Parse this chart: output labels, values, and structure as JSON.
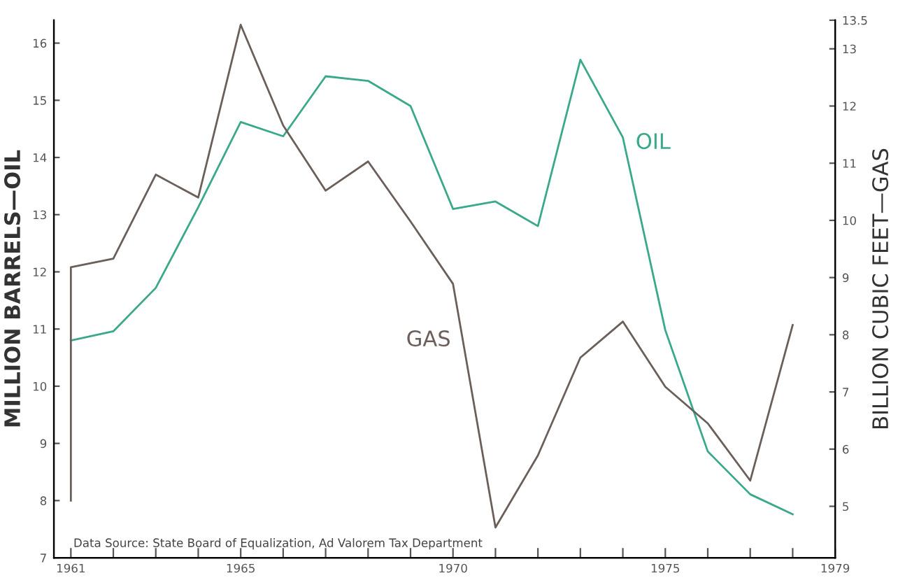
{
  "chart_data": {
    "type": "line",
    "ylabel": "MILLION BARRELS—OIL",
    "y2label": "BILLION CUBIC FEET—GAS",
    "annotations": [
      "Data Source: State Board of Equalization, Ad Valorem Tax Department"
    ],
    "series": [
      {
        "name": "OIL",
        "color": "#3aa88a",
        "x": [
          1961,
          1962,
          1963,
          1964,
          1965,
          1966,
          1967,
          1968,
          1969,
          1970,
          1971,
          1972,
          1973,
          1974,
          1975,
          1976,
          1977,
          1978
        ],
        "values": [
          10.8,
          10.96,
          11.72,
          13.13,
          14.62,
          14.37,
          15.42,
          15.34,
          14.9,
          13.1,
          13.23,
          12.8,
          15.71,
          14.35,
          10.98,
          8.86,
          8.11,
          7.76
        ]
      },
      {
        "name": "GAS",
        "color": "#6b5f5a",
        "axis": "y2",
        "x": [
          1961,
          1961,
          1962,
          1963,
          1964,
          1965,
          1966,
          1967,
          1968,
          1969,
          1970,
          1971,
          1972,
          1973,
          1974,
          1975,
          1976,
          1977,
          1978
        ],
        "values": [
          5.1,
          9.18,
          9.33,
          10.8,
          10.4,
          13.42,
          11.66,
          10.52,
          11.03,
          9.98,
          8.89,
          4.63,
          5.89,
          7.6,
          8.23,
          7.09,
          6.45,
          5.45,
          8.17
        ]
      }
    ],
    "xlim": [
      1960.6,
      1979
    ],
    "xticks": [
      1961,
      {
        "value": 1962,
        "label": null
      },
      {
        "value": 1963,
        "label": null
      },
      {
        "value": 1964,
        "label": null
      },
      1965,
      {
        "value": 1966,
        "label": null
      },
      {
        "value": 1967,
        "label": null
      },
      {
        "value": 1968,
        "label": null
      },
      {
        "value": 1969,
        "label": null
      },
      1970,
      {
        "value": 1971,
        "label": null
      },
      {
        "value": 1972,
        "label": null
      },
      {
        "value": 1973,
        "label": null
      },
      {
        "value": 1974,
        "label": null
      },
      1975,
      {
        "value": 1976,
        "label": null
      },
      {
        "value": 1977,
        "label": null
      },
      {
        "value": 1978,
        "label": null
      },
      1979
    ],
    "ylim": [
      7,
      16.4
    ],
    "yticks": [
      7,
      8,
      9,
      10,
      11,
      12,
      13,
      14,
      15,
      16
    ],
    "y2lim": [
      4.1,
      13.5
    ],
    "y2ticks": [
      5,
      6,
      7,
      8,
      9,
      10,
      11,
      12,
      13,
      13.5
    ],
    "grid": false,
    "legend": false,
    "marker": "none",
    "line_style": "solid"
  }
}
